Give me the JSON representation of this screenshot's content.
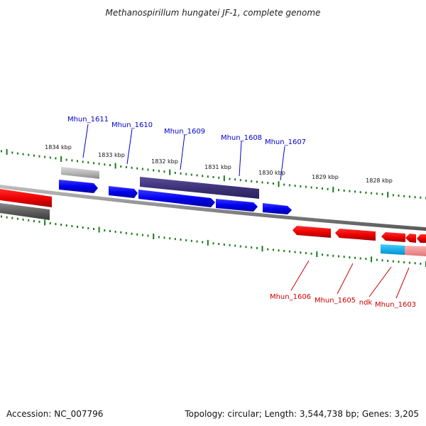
{
  "title": "Methanospirillum hungatei JF-1, complete genome",
  "footer": {
    "accession": "Accession: NC_007796",
    "info": "Topology: circular; Length: 3,544,738 bp; Genes: 3,205"
  },
  "colors": {
    "top_label": "#0000cc",
    "bottom_label": "#cc0000",
    "tick": "#1a7a1a",
    "backbone": "#8c8c8c"
  },
  "ticks": [
    "1834 kbp",
    "1833 kbp",
    "1832 kbp",
    "1831 kbp",
    "1830 kbp",
    "1829 kbp",
    "1828 kbp"
  ],
  "gene_labels_top": [
    "Mhun_1611",
    "Mhun_1610",
    "Mhun_1609",
    "Mhun_1608",
    "Mhun_1607"
  ],
  "gene_labels_bottom": [
    "Mhun_1606",
    "Mhun_1605",
    "ndk",
    "Mhun_1603"
  ]
}
